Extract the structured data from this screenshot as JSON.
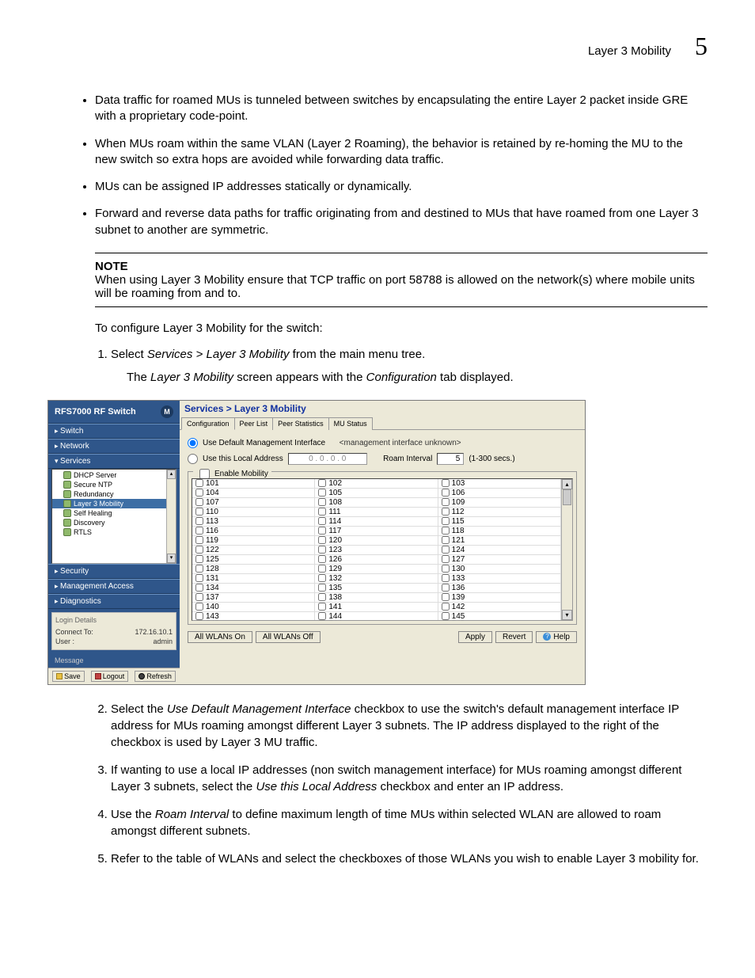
{
  "header": {
    "section": "Layer 3 Mobility",
    "chapter": "5"
  },
  "bullets": [
    "Data traffic for roamed MUs is tunneled between switches by encapsulating the entire Layer 2 packet inside GRE with a proprietary code-point.",
    "When MUs roam within the same VLAN (Layer 2 Roaming), the behavior is retained by re-homing the MU to the new switch so extra hops are avoided while forwarding data traffic.",
    "MUs can be assigned IP addresses statically or dynamically.",
    "Forward and reverse data paths for traffic originating from and destined to MUs that have roamed from one Layer 3 subnet to another are symmetric."
  ],
  "note": {
    "label": "NOTE",
    "text": "When using Layer 3 Mobility ensure that TCP traffic on port 58788 is allowed on the network(s) where mobile units will be roaming from and to."
  },
  "config_intro": "To configure Layer 3 Mobility for the switch:",
  "step1_prefix": "Select ",
  "step1_italic": "Services > Layer 3 Mobility",
  "step1_suffix": " from the main menu tree.",
  "step1_sub_pre": "The ",
  "step1_sub_i1": "Layer 3 Mobility",
  "step1_sub_mid": " screen appears with the ",
  "step1_sub_i2": "Configuration",
  "step1_sub_end": " tab displayed.",
  "app": {
    "product": "RFS7000",
    "product_sub": " RF Switch",
    "nav": {
      "switch": "Switch",
      "network": "Network",
      "services": "Services",
      "security": "Security",
      "mgmt": "Management Access",
      "diag": "Diagnostics"
    },
    "tree": [
      {
        "label": "DHCP Server",
        "id": "dhcp"
      },
      {
        "label": "Secure NTP",
        "id": "ntp"
      },
      {
        "label": "Redundancy",
        "id": "redundancy"
      },
      {
        "label": "Layer 3 Mobility",
        "id": "l3m",
        "active": true
      },
      {
        "label": "Self Healing",
        "id": "selfheal"
      },
      {
        "label": "Discovery",
        "id": "discovery"
      },
      {
        "label": "RTLS",
        "id": "rtls"
      }
    ],
    "login": {
      "header": "Login Details",
      "connect_label": "Connect To:",
      "connect_value": "172.16.10.1",
      "user_label": "User :",
      "user_value": "admin"
    },
    "message_label": "Message",
    "footer": {
      "save": "Save",
      "logout": "Logout",
      "refresh": "Refresh"
    },
    "breadcrumb": "Services > Layer 3 Mobility",
    "tabs": [
      "Configuration",
      "Peer List",
      "Peer Statistics",
      "MU Status"
    ],
    "active_tab": 0,
    "opt1_label": "Use Default Management Interface",
    "opt1_hint": "<management interface unknown>",
    "opt2_label": "Use this Local Address",
    "ip_value": "0 . 0 . 0 . 0",
    "roam_label": "Roam Interval",
    "roam_value": "5",
    "roam_range": "(1-300 secs.)",
    "enable_label": "Enable Mobility",
    "wlan_start": 101,
    "wlan_end": 145,
    "buttons": {
      "all_on": "All WLANs On",
      "all_off": "All WLANs Off",
      "apply": "Apply",
      "revert": "Revert",
      "help": "Help"
    }
  },
  "steps_after": [
    {
      "n": "2",
      "pre": "Select the ",
      "i": "Use Default Management Interface",
      "post": " checkbox to use the switch's default management interface IP address for MUs roaming amongst different Layer 3 subnets. The IP address displayed to the right of the checkbox is used by Layer 3 MU traffic."
    },
    {
      "n": "3",
      "pre": "If wanting to use a local IP addresses (non switch management interface) for MUs roaming amongst different Layer 3 subnets, select the ",
      "i": "Use this Local Address",
      "post": " checkbox and enter an IP address."
    },
    {
      "n": "4",
      "pre": "Use the ",
      "i": "Roam Interval",
      "post": " to define maximum length of time MUs within selected WLAN are allowed to roam amongst different subnets."
    },
    {
      "n": "5",
      "pre": "Refer to the table of WLANs and select the checkboxes of those WLANs you wish to enable Layer 3 mobility for.",
      "i": "",
      "post": ""
    }
  ]
}
